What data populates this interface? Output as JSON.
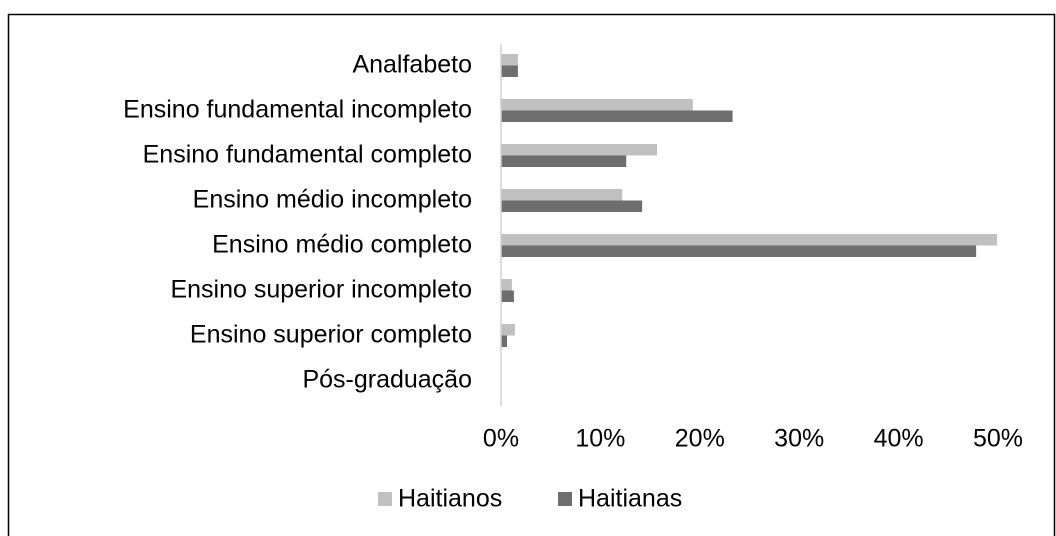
{
  "chart_data": {
    "type": "bar",
    "orientation": "horizontal",
    "categories": [
      "Analfabeto",
      "Ensino fundamental incompleto",
      "Ensino fundamental completo",
      "Ensino médio incompleto",
      "Ensino médio completo",
      "Ensino superior incompleto",
      "Ensino superior completo",
      "Pós-graduação"
    ],
    "series": [
      {
        "name": "Haitianos",
        "color": "#c0c0c0",
        "values": [
          1.7,
          19.3,
          15.7,
          12.2,
          49.9,
          1.1,
          1.4,
          0
        ]
      },
      {
        "name": "Haitianas",
        "color": "#6e6e6e",
        "values": [
          1.7,
          23.3,
          12.6,
          14.2,
          47.8,
          1.3,
          0.6,
          0
        ]
      }
    ],
    "xlim": [
      0,
      50
    ],
    "xticks": [
      {
        "value": 0,
        "label": "0%"
      },
      {
        "value": 10,
        "label": "10%"
      },
      {
        "value": 20,
        "label": "20%"
      },
      {
        "value": 30,
        "label": "30%"
      },
      {
        "value": 40,
        "label": "40%"
      },
      {
        "value": 50,
        "label": "50%"
      }
    ],
    "legend": "bottom"
  }
}
